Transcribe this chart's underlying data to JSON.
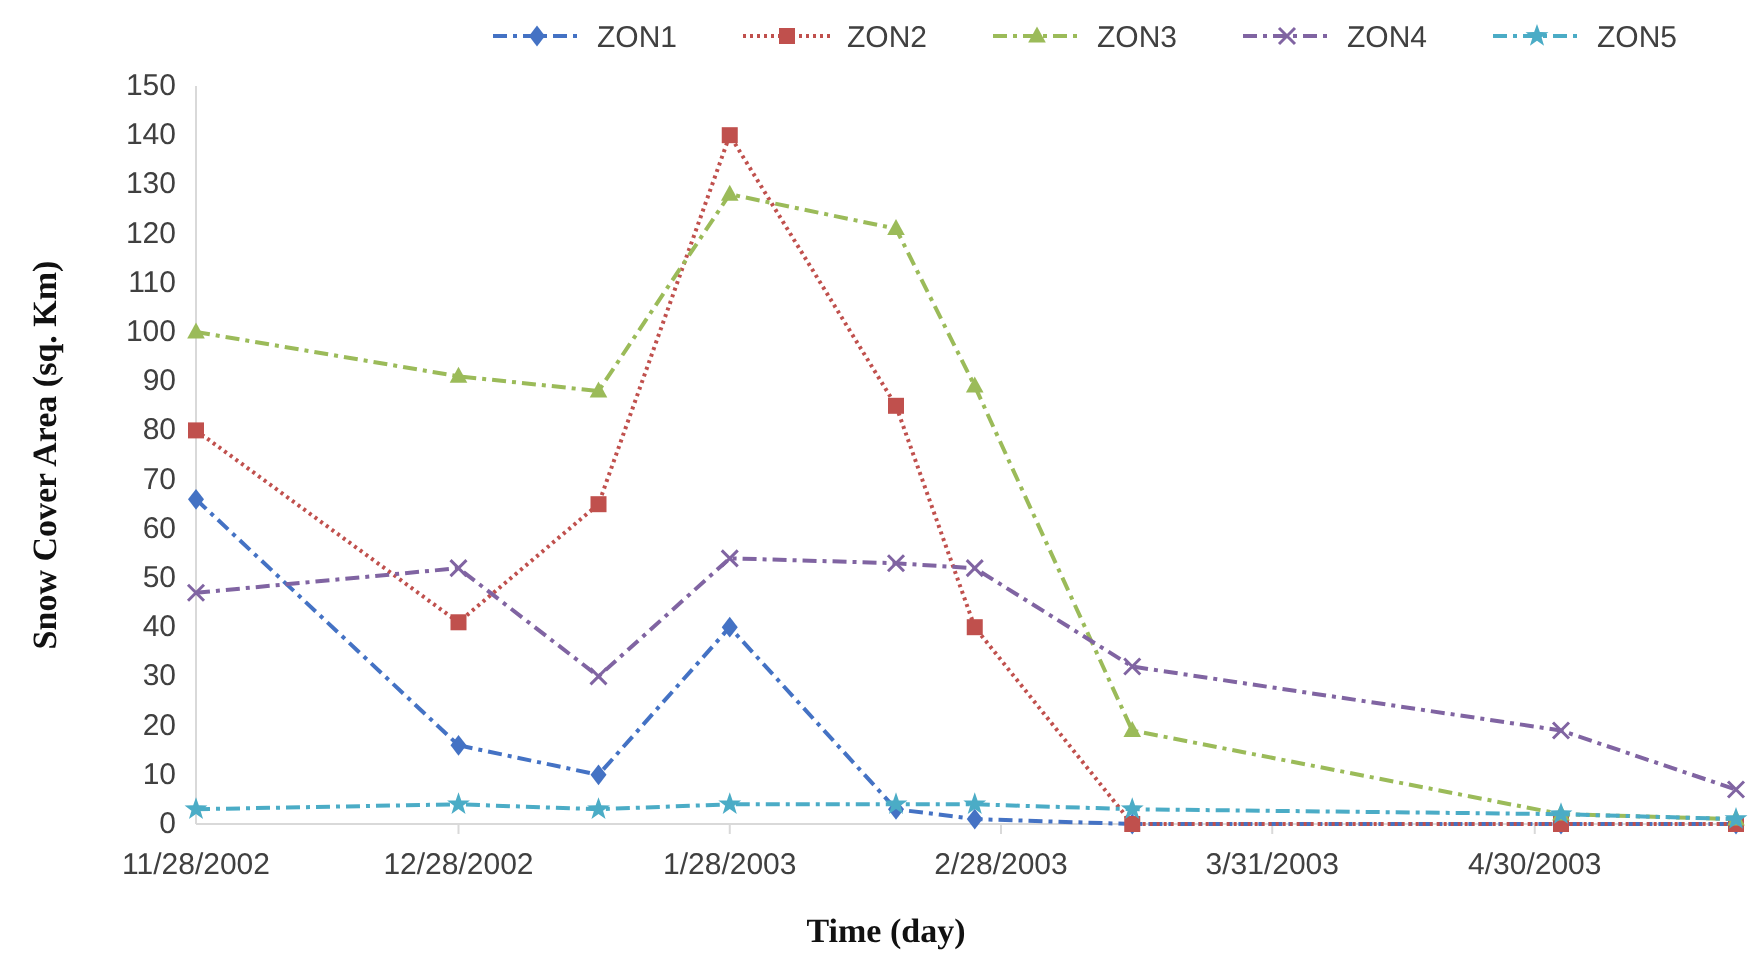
{
  "chart_data": {
    "type": "line",
    "xlabel": "Time (day)",
    "ylabel": "Snow Cover Area (sq. Km)",
    "x": [
      "2002-11-28",
      "2002-12-28",
      "2003-01-13",
      "2003-01-28",
      "2003-02-16",
      "2003-02-25",
      "2003-03-15",
      "2003-05-03",
      "2003-05-23"
    ],
    "xlim": [
      "2002-11-28",
      "2003-05-23"
    ],
    "xticks": [
      {
        "value": "2002-11-28",
        "label": "11/28/2002"
      },
      {
        "value": "2002-12-28",
        "label": "12/28/2002"
      },
      {
        "value": "2003-01-28",
        "label": "1/28/2003"
      },
      {
        "value": "2003-02-28",
        "label": "2/28/2003"
      },
      {
        "value": "2003-03-31",
        "label": "3/31/2003"
      },
      {
        "value": "2003-04-30",
        "label": "4/30/2003"
      }
    ],
    "ylim": [
      0,
      150
    ],
    "yticks": [
      0,
      10,
      20,
      30,
      40,
      50,
      60,
      70,
      80,
      90,
      100,
      110,
      120,
      130,
      140,
      150
    ],
    "grid": false,
    "legend": "top",
    "series": [
      {
        "name": "ZON1",
        "color": "#4472c4",
        "marker": "diamond",
        "line_style": "dashed",
        "values": [
          66,
          16,
          10,
          40,
          3,
          1,
          0,
          0,
          0
        ]
      },
      {
        "name": "ZON2",
        "color": "#c0504d",
        "marker": "square",
        "line_style": "dotted",
        "values": [
          80,
          41,
          65,
          140,
          85,
          40,
          0,
          0,
          0
        ]
      },
      {
        "name": "ZON3",
        "color": "#9bbb59",
        "marker": "triangle",
        "line_style": "dashed",
        "values": [
          100,
          91,
          88,
          128,
          121,
          89,
          19,
          2,
          1
        ]
      },
      {
        "name": "ZON4",
        "color": "#8064a2",
        "marker": "cross",
        "line_style": "dashed",
        "values": [
          47,
          52,
          30,
          54,
          53,
          52,
          32,
          19,
          7
        ]
      },
      {
        "name": "ZON5",
        "color": "#4bacc6",
        "marker": "star",
        "line_style": "dashed",
        "values": [
          3,
          4,
          3,
          4,
          4,
          4,
          3,
          2,
          1
        ]
      }
    ]
  }
}
